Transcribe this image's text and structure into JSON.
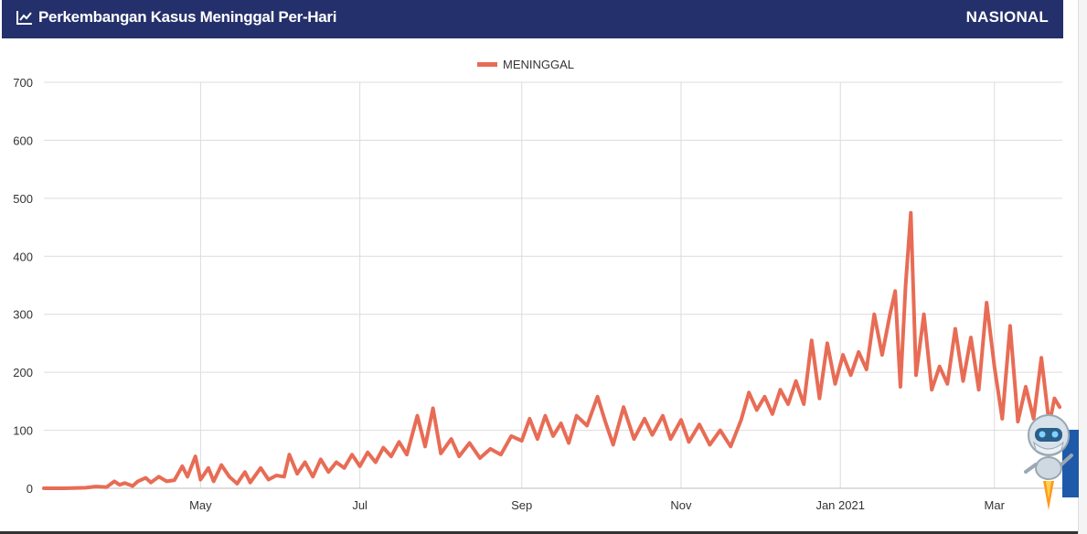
{
  "header": {
    "title": "Perkembangan Kasus Meninggal Per-Hari",
    "scope": "NASIONAL",
    "icon": "line-chart-icon"
  },
  "colors": {
    "header_bg": "#24306b",
    "series": "#e86c55",
    "grid": "#dcdcdc"
  },
  "chart_data": {
    "type": "line",
    "title": "",
    "xlabel": "",
    "ylabel": "",
    "legend": {
      "position": "top-center",
      "entries": [
        "MENINGGAL"
      ]
    },
    "grid": true,
    "ylim": [
      0,
      700
    ],
    "y_ticks": [
      "0",
      "100",
      "200",
      "300",
      "400",
      "500",
      "600",
      "700"
    ],
    "x_ticks": [
      {
        "label": "May",
        "date": "2020-05-01"
      },
      {
        "label": "Jul",
        "date": "2020-07-01"
      },
      {
        "label": "Sep",
        "date": "2020-09-01"
      },
      {
        "label": "Nov",
        "date": "2020-11-01"
      },
      {
        "label": "Jan 2021",
        "date": "2021-01-01"
      },
      {
        "label": "Mar",
        "date": "2021-03-01"
      }
    ],
    "series": [
      {
        "name": "MENINGGAL",
        "points": [
          [
            "2020-03-02",
            0
          ],
          [
            "2020-03-10",
            0
          ],
          [
            "2020-03-18",
            1
          ],
          [
            "2020-03-22",
            3
          ],
          [
            "2020-03-26",
            2
          ],
          [
            "2020-03-29",
            12
          ],
          [
            "2020-03-31",
            6
          ],
          [
            "2020-04-02",
            9
          ],
          [
            "2020-04-05",
            4
          ],
          [
            "2020-04-07",
            12
          ],
          [
            "2020-04-10",
            18
          ],
          [
            "2020-04-12",
            10
          ],
          [
            "2020-04-15",
            20
          ],
          [
            "2020-04-18",
            12
          ],
          [
            "2020-04-21",
            14
          ],
          [
            "2020-04-24",
            38
          ],
          [
            "2020-04-26",
            20
          ],
          [
            "2020-04-29",
            55
          ],
          [
            "2020-05-01",
            15
          ],
          [
            "2020-05-04",
            35
          ],
          [
            "2020-05-06",
            12
          ],
          [
            "2020-05-09",
            40
          ],
          [
            "2020-05-12",
            20
          ],
          [
            "2020-05-15",
            8
          ],
          [
            "2020-05-18",
            28
          ],
          [
            "2020-05-20",
            10
          ],
          [
            "2020-05-24",
            35
          ],
          [
            "2020-05-27",
            15
          ],
          [
            "2020-05-30",
            22
          ],
          [
            "2020-06-02",
            20
          ],
          [
            "2020-06-04",
            58
          ],
          [
            "2020-06-07",
            25
          ],
          [
            "2020-06-10",
            45
          ],
          [
            "2020-06-13",
            20
          ],
          [
            "2020-06-16",
            50
          ],
          [
            "2020-06-19",
            28
          ],
          [
            "2020-06-22",
            45
          ],
          [
            "2020-06-25",
            35
          ],
          [
            "2020-06-28",
            58
          ],
          [
            "2020-07-01",
            38
          ],
          [
            "2020-07-04",
            62
          ],
          [
            "2020-07-07",
            45
          ],
          [
            "2020-07-10",
            70
          ],
          [
            "2020-07-13",
            55
          ],
          [
            "2020-07-16",
            80
          ],
          [
            "2020-07-19",
            58
          ],
          [
            "2020-07-23",
            125
          ],
          [
            "2020-07-26",
            72
          ],
          [
            "2020-07-29",
            138
          ],
          [
            "2020-08-01",
            60
          ],
          [
            "2020-08-05",
            85
          ],
          [
            "2020-08-08",
            55
          ],
          [
            "2020-08-12",
            78
          ],
          [
            "2020-08-16",
            52
          ],
          [
            "2020-08-20",
            68
          ],
          [
            "2020-08-24",
            58
          ],
          [
            "2020-08-28",
            90
          ],
          [
            "2020-09-01",
            82
          ],
          [
            "2020-09-04",
            120
          ],
          [
            "2020-09-07",
            85
          ],
          [
            "2020-09-10",
            125
          ],
          [
            "2020-09-13",
            90
          ],
          [
            "2020-09-16",
            112
          ],
          [
            "2020-09-19",
            78
          ],
          [
            "2020-09-22",
            125
          ],
          [
            "2020-09-26",
            108
          ],
          [
            "2020-09-30",
            158
          ],
          [
            "2020-10-03",
            115
          ],
          [
            "2020-10-06",
            75
          ],
          [
            "2020-10-10",
            140
          ],
          [
            "2020-10-14",
            85
          ],
          [
            "2020-10-18",
            120
          ],
          [
            "2020-10-21",
            92
          ],
          [
            "2020-10-25",
            125
          ],
          [
            "2020-10-28",
            85
          ],
          [
            "2020-11-01",
            118
          ],
          [
            "2020-11-04",
            80
          ],
          [
            "2020-11-08",
            110
          ],
          [
            "2020-11-12",
            75
          ],
          [
            "2020-11-16",
            100
          ],
          [
            "2020-11-20",
            72
          ],
          [
            "2020-11-24",
            118
          ],
          [
            "2020-11-27",
            165
          ],
          [
            "2020-11-30",
            135
          ],
          [
            "2020-12-03",
            158
          ],
          [
            "2020-12-06",
            128
          ],
          [
            "2020-12-09",
            170
          ],
          [
            "2020-12-12",
            145
          ],
          [
            "2020-12-15",
            185
          ],
          [
            "2020-12-18",
            145
          ],
          [
            "2020-12-21",
            255
          ],
          [
            "2020-12-24",
            155
          ],
          [
            "2020-12-27",
            250
          ],
          [
            "2020-12-30",
            180
          ],
          [
            "2021-01-02",
            230
          ],
          [
            "2021-01-05",
            195
          ],
          [
            "2021-01-08",
            235
          ],
          [
            "2021-01-11",
            205
          ],
          [
            "2021-01-14",
            300
          ],
          [
            "2021-01-17",
            230
          ],
          [
            "2021-01-20",
            300
          ],
          [
            "2021-01-22",
            340
          ],
          [
            "2021-01-24",
            175
          ],
          [
            "2021-01-26",
            350
          ],
          [
            "2021-01-28",
            475
          ],
          [
            "2021-01-30",
            195
          ],
          [
            "2021-02-02",
            300
          ],
          [
            "2021-02-05",
            170
          ],
          [
            "2021-02-08",
            210
          ],
          [
            "2021-02-11",
            180
          ],
          [
            "2021-02-14",
            275
          ],
          [
            "2021-02-17",
            185
          ],
          [
            "2021-02-20",
            260
          ],
          [
            "2021-02-23",
            170
          ],
          [
            "2021-02-26",
            320
          ],
          [
            "2021-03-01",
            210
          ],
          [
            "2021-03-04",
            120
          ],
          [
            "2021-03-07",
            280
          ],
          [
            "2021-03-10",
            115
          ],
          [
            "2021-03-13",
            175
          ],
          [
            "2021-03-16",
            120
          ],
          [
            "2021-03-19",
            225
          ],
          [
            "2021-03-22",
            110
          ],
          [
            "2021-03-24",
            155
          ],
          [
            "2021-03-26",
            140
          ]
        ]
      }
    ]
  }
}
